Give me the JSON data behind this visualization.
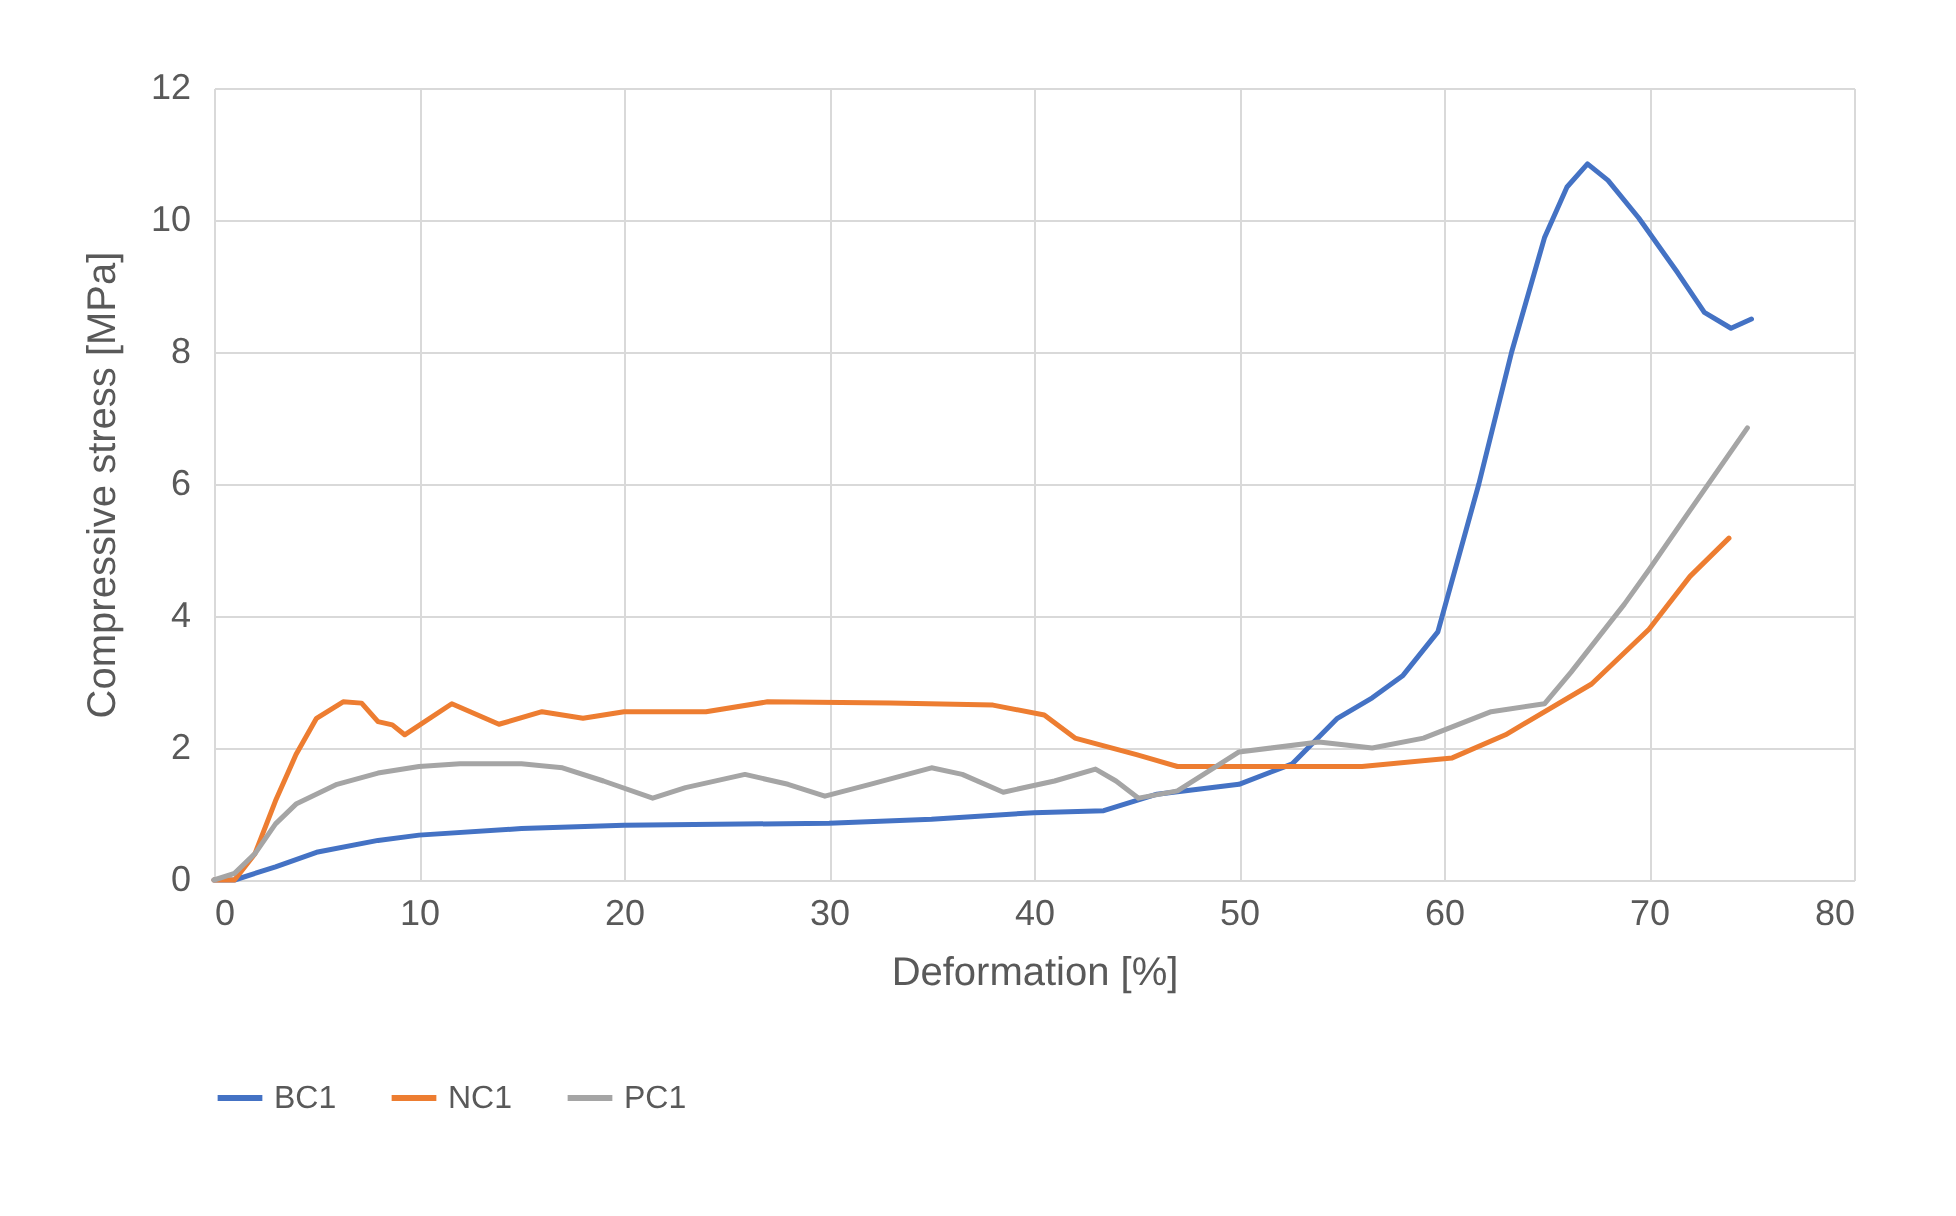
{
  "chart_data": {
    "type": "line",
    "xlabel": "Deformation [%]",
    "ylabel": "Compressive stress [MPa]",
    "xlim": [
      0,
      80
    ],
    "xticks": [
      0,
      10,
      20,
      30,
      40,
      50,
      60,
      70,
      80
    ],
    "ylim": [
      0,
      12
    ],
    "yticks": [
      0,
      2,
      4,
      6,
      8,
      10,
      12
    ],
    "grid": true,
    "legend": "bottom",
    "marker": "none",
    "line_style": "solid",
    "series": [
      {
        "name": "BC1",
        "color": "#4472c4",
        "x": [
          0,
          1,
          3,
          5,
          8,
          10,
          15,
          20,
          30,
          35,
          40,
          43.4,
          46,
          50,
          52.6,
          54.8,
          56.5,
          58,
          59.7,
          61.7,
          63.3,
          64.9,
          66,
          67,
          68,
          69.5,
          71.4,
          72.7,
          74,
          75
        ],
        "values": [
          0,
          0,
          0.2,
          0.42,
          0.6,
          0.68,
          0.78,
          0.83,
          0.86,
          0.92,
          1.02,
          1.05,
          1.3,
          1.45,
          1.76,
          2.45,
          2.76,
          3.1,
          3.76,
          6.0,
          8.0,
          9.73,
          10.5,
          10.85,
          10.6,
          10.03,
          9.2,
          8.6,
          8.36,
          8.5
        ]
      },
      {
        "name": "NC1",
        "color": "#ed7d31",
        "x": [
          0,
          1,
          2,
          3,
          4,
          5,
          6.3,
          7.2,
          8,
          8.7,
          9.3,
          11.6,
          13.9,
          16,
          18,
          20,
          24,
          27,
          33,
          38,
          40.5,
          42,
          45,
          47,
          50,
          56,
          60.4,
          63,
          67.2,
          70,
          72,
          73.9
        ],
        "values": [
          0,
          0,
          0.4,
          1.2,
          1.9,
          2.45,
          2.7,
          2.68,
          2.4,
          2.35,
          2.2,
          2.67,
          2.36,
          2.55,
          2.45,
          2.55,
          2.55,
          2.7,
          2.68,
          2.65,
          2.5,
          2.15,
          1.9,
          1.72,
          1.72,
          1.72,
          1.85,
          2.2,
          2.97,
          3.8,
          4.6,
          5.18
        ]
      },
      {
        "name": "PC1",
        "color": "#a5a5a5",
        "x": [
          0,
          1,
          2,
          3,
          4,
          6,
          8,
          10,
          12,
          15,
          17,
          19,
          21.4,
          23,
          25.9,
          28,
          29.8,
          32,
          35,
          36.5,
          38.5,
          41,
          43,
          44,
          45.1,
          47,
          50,
          53.9,
          56.5,
          59,
          62.3,
          64.9,
          66.2,
          68.8,
          70,
          72,
          74.8
        ],
        "values": [
          0,
          0.1,
          0.4,
          0.85,
          1.15,
          1.45,
          1.62,
          1.72,
          1.76,
          1.76,
          1.7,
          1.5,
          1.24,
          1.4,
          1.6,
          1.45,
          1.27,
          1.45,
          1.7,
          1.6,
          1.33,
          1.5,
          1.68,
          1.5,
          1.24,
          1.35,
          1.94,
          2.09,
          2.0,
          2.15,
          2.55,
          2.67,
          3.15,
          4.18,
          4.7,
          5.6,
          6.85
        ]
      }
    ]
  }
}
